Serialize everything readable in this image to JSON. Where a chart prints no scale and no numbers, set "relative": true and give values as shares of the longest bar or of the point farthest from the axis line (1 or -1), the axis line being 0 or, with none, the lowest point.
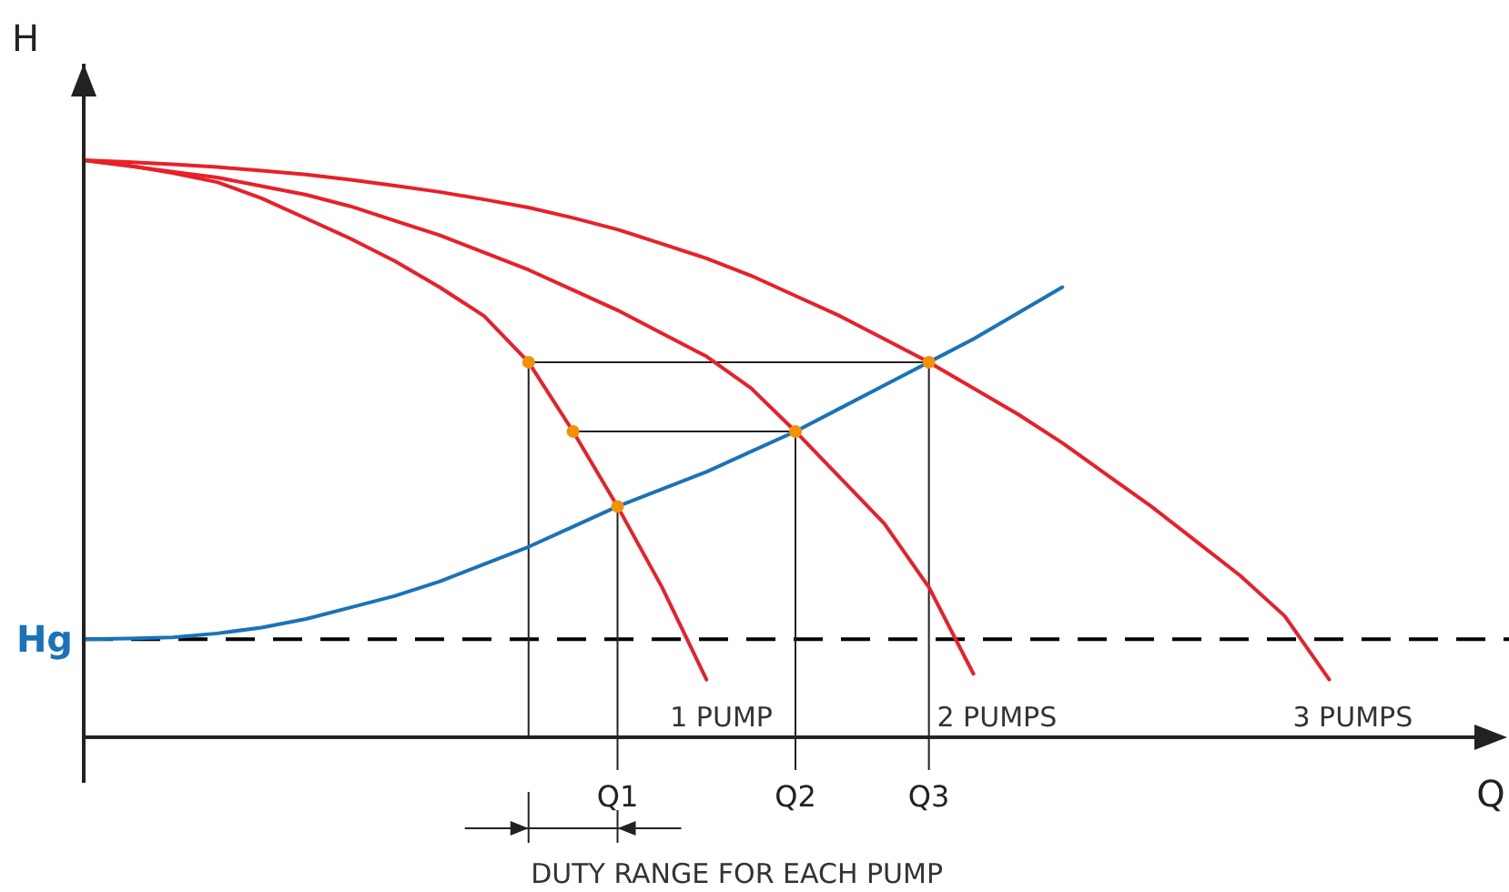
{
  "chart_data": {
    "type": "line",
    "relative": true,
    "xlabel": "Q",
    "ylabel": "H",
    "categories": [
      null,
      null,
      null,
      null,
      null,
      null,
      null,
      null,
      null,
      null,
      null,
      null,
      "Q1",
      null,
      null,
      null,
      "Q2",
      null,
      null,
      "Q3",
      null,
      null,
      null,
      null,
      null,
      null,
      null,
      null,
      null,
      null,
      null,
      null,
      null
    ],
    "tick_labels": "x",
    "line_style": "solid",
    "series": [
      {
        "name": "1 PUMP",
        "color": "#e8202a",
        "values": [
          1,
          0.991,
          0.978,
          0.962,
          0.934,
          0.899,
          0.864,
          0.825,
          0.78,
          0.73,
          0.65,
          0.53,
          0.4,
          0.26,
          0.1,
          null,
          null,
          null,
          null,
          null,
          null,
          null,
          null,
          null,
          null,
          null,
          null,
          null,
          null,
          null,
          null,
          null,
          null
        ]
      },
      {
        "name": "2 PUMPS",
        "color": "#e8202a",
        "values": [
          1,
          0.99,
          0.98,
          0.97,
          0.955,
          0.94,
          0.92,
          0.895,
          0.87,
          0.84,
          0.81,
          0.775,
          0.74,
          0.7,
          0.66,
          0.605,
          0.53,
          0.45,
          0.37,
          0.26,
          0.11,
          null,
          null,
          null,
          null,
          null,
          null,
          null,
          null,
          null,
          null,
          null,
          null
        ]
      },
      {
        "name": "3 PUMPS",
        "color": "#e8202a",
        "values": [
          1,
          0.997,
          0.993,
          0.988,
          0.982,
          0.975,
          0.966,
          0.956,
          0.945,
          0.932,
          0.918,
          0.9,
          0.88,
          0.855,
          0.83,
          0.8,
          0.765,
          0.73,
          0.69,
          0.65,
          0.605,
          0.56,
          0.51,
          0.455,
          0.4,
          0.34,
          0.28,
          0.21,
          0.1,
          null,
          null,
          null,
          null
        ]
      },
      {
        "color": "#1a73b8",
        "values": [
          0.17,
          0.171,
          0.173,
          0.18,
          0.19,
          0.205,
          0.225,
          0.245,
          0.27,
          0.3,
          0.33,
          0.365,
          0.4,
          0.43,
          0.46,
          0.495,
          0.53,
          0.57,
          0.61,
          0.65,
          0.69,
          0.735,
          0.78,
          null,
          null,
          null,
          null,
          null,
          null,
          null,
          null,
          null,
          null
        ]
      },
      {
        "type": "scatter",
        "marker": "circle",
        "color": "#f39200",
        "values": [
          null,
          null,
          null,
          null,
          null,
          null,
          null,
          null,
          null,
          null,
          0.65,
          0.53,
          0.4,
          null,
          null,
          null,
          0.53,
          null,
          null,
          0.65,
          null,
          null,
          null,
          null,
          null,
          null,
          null,
          null,
          null,
          null,
          null,
          null,
          null
        ]
      }
    ],
    "ref_lines": [
      {
        "axis": "y",
        "value": 0.17,
        "label": "Hg",
        "color": "#000000",
        "line_style": "dashed"
      }
    ],
    "annotations": [
      "DUTY RANGE FOR EACH PUMP"
    ]
  }
}
